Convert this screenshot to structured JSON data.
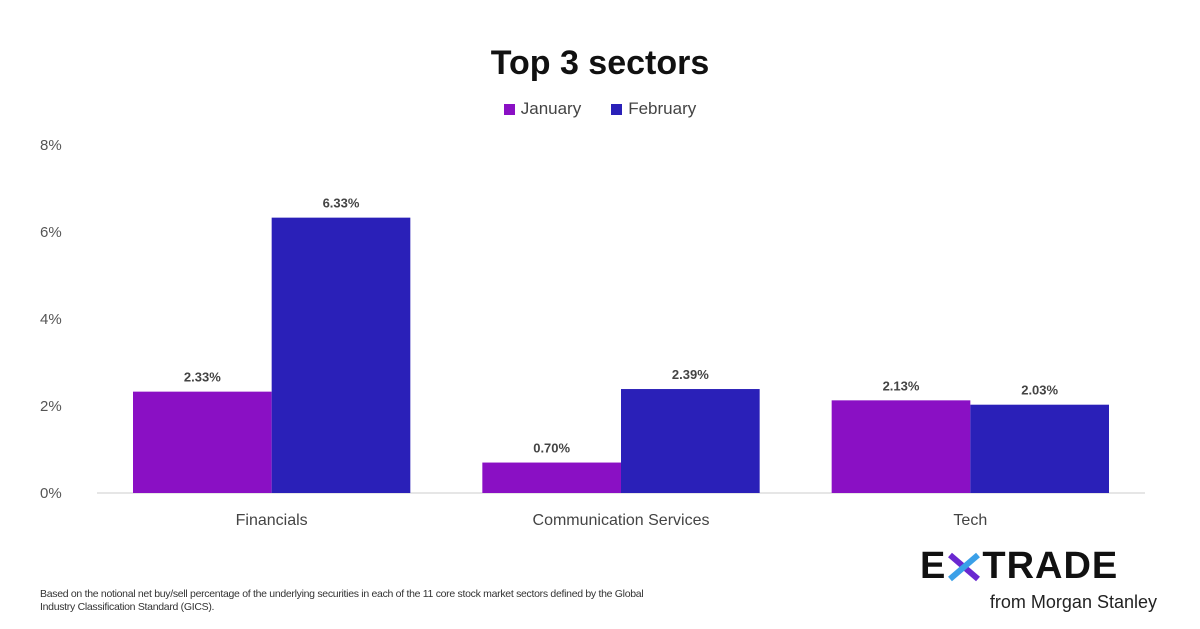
{
  "chart_data": {
    "type": "bar",
    "title": "Top 3 sectors",
    "categories": [
      "Financials",
      "Communication Services",
      "Tech"
    ],
    "series": [
      {
        "name": "January",
        "values": [
          2.33,
          0.7,
          2.13
        ],
        "labels": [
          "2.33%",
          "0.70%",
          "2.13%"
        ],
        "color": "#8a10c4"
      },
      {
        "name": "February",
        "values": [
          6.33,
          2.39,
          2.03
        ],
        "labels": [
          "6.33%",
          "2.39%",
          "2.03%"
        ],
        "color": "#2a20b8"
      }
    ],
    "ylim": [
      0,
      8
    ],
    "yticks": [
      0,
      2,
      4,
      6,
      8
    ],
    "ytick_labels": [
      "0%",
      "2%",
      "4%",
      "6%",
      "8%"
    ],
    "xlabel": "",
    "ylabel": "",
    "grid": false,
    "legend": "top-center"
  },
  "footnote": "Based on the notional net buy/sell percentage of the underlying securities in each of the 11 core stock market sectors defined by the Global Industry Classification Standard (GICS).",
  "logo": {
    "left": "E",
    "right": "TRADE",
    "sub": "from Morgan Stanley"
  }
}
